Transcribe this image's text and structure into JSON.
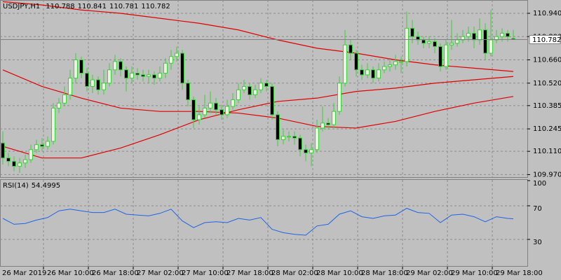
{
  "chart_data": [
    {
      "type": "candlestick",
      "title": "USDJPY,H1",
      "categories": [
        "26 Mar 2019",
        null,
        null,
        null,
        null,
        null,
        null,
        null,
        "26 Mar 10:00",
        null,
        null,
        null,
        null,
        null,
        null,
        null,
        "26 Mar 18:00",
        null,
        null,
        null,
        null,
        null,
        null,
        null,
        "27 Mar 02:00",
        null,
        null,
        null,
        null,
        null,
        null,
        null,
        "27 Mar 10:00",
        null,
        null,
        null,
        null,
        null,
        null,
        null,
        "27 Mar 18:00",
        null,
        null,
        null,
        null,
        null,
        null,
        null,
        "28 Mar 02:00",
        null,
        null,
        null,
        null,
        null,
        null,
        null,
        "28 Mar 10:00",
        null,
        null,
        null,
        null,
        null,
        null,
        null,
        "28 Mar 18:00",
        null,
        null,
        null,
        null,
        null,
        null,
        null,
        "29 Mar 02:00",
        null,
        null,
        null,
        null,
        null,
        null,
        null,
        "29 Mar 10:00",
        null,
        null,
        null,
        null,
        null,
        null,
        null,
        "29 Mar 18:00",
        null,
        null,
        null
      ],
      "open": [
        110.16,
        110.07,
        110.05,
        110.02,
        110.04,
        110.06,
        110.12,
        110.15,
        110.14,
        110.17,
        110.37,
        110.4,
        110.45,
        110.55,
        110.66,
        110.58,
        110.5,
        110.54,
        110.48,
        110.52,
        110.6,
        110.65,
        110.6,
        110.55,
        110.58,
        110.57,
        110.56,
        110.57,
        110.55,
        110.58,
        110.64,
        110.68,
        110.7,
        110.52,
        110.42,
        110.3,
        110.33,
        110.37,
        110.4,
        110.36,
        110.33,
        110.38,
        110.42,
        110.48,
        110.5,
        110.45,
        110.48,
        110.52,
        110.5,
        110.33,
        110.18,
        110.2,
        110.2,
        110.19,
        110.12,
        110.1,
        110.12,
        110.25,
        110.28,
        110.27,
        110.35,
        110.52,
        110.75,
        110.7,
        110.6,
        110.57,
        110.6,
        110.55,
        110.6,
        110.62,
        110.63,
        110.65,
        110.65,
        110.85,
        110.8,
        110.78,
        110.76,
        110.77,
        110.74,
        110.62,
        110.75,
        110.76,
        110.78,
        110.8,
        110.82,
        110.78,
        110.84,
        110.7,
        110.78,
        110.8,
        110.82,
        110.788
      ],
      "high": [
        110.23,
        110.1,
        110.08,
        110.07,
        110.09,
        110.15,
        110.18,
        110.19,
        110.2,
        110.4,
        110.43,
        110.5,
        110.6,
        110.7,
        110.68,
        110.61,
        110.57,
        110.56,
        110.6,
        110.64,
        110.69,
        110.67,
        110.62,
        110.62,
        110.61,
        110.6,
        110.6,
        110.59,
        110.62,
        110.67,
        110.72,
        110.74,
        110.72,
        110.54,
        110.44,
        110.38,
        110.45,
        110.47,
        110.43,
        110.39,
        110.42,
        110.46,
        110.52,
        110.54,
        110.52,
        110.51,
        110.55,
        110.54,
        110.52,
        110.35,
        110.24,
        110.23,
        110.23,
        110.21,
        110.15,
        110.16,
        110.3,
        110.38,
        110.31,
        110.4,
        110.56,
        110.84,
        110.78,
        110.72,
        110.63,
        110.64,
        110.62,
        110.64,
        110.65,
        110.66,
        110.69,
        110.68,
        110.95,
        110.9,
        110.83,
        110.8,
        110.8,
        110.79,
        110.76,
        110.78,
        110.9,
        110.82,
        110.84,
        110.86,
        110.86,
        110.91,
        110.88,
        110.96,
        110.84,
        110.85,
        110.84,
        110.841
      ],
      "low": [
        110.03,
        110.02,
        109.99,
        109.98,
        110.01,
        110.04,
        110.1,
        110.11,
        110.12,
        110.15,
        110.34,
        110.38,
        110.42,
        110.52,
        110.55,
        110.47,
        110.46,
        110.45,
        110.45,
        110.5,
        110.57,
        110.56,
        110.47,
        110.52,
        110.54,
        110.53,
        110.52,
        110.51,
        110.53,
        110.55,
        110.6,
        110.65,
        110.48,
        110.38,
        110.25,
        110.27,
        110.31,
        110.34,
        110.33,
        110.3,
        110.31,
        110.36,
        110.4,
        110.46,
        110.42,
        110.43,
        110.46,
        110.47,
        110.3,
        110.14,
        110.15,
        110.17,
        110.15,
        110.08,
        110.05,
        110.02,
        110.1,
        110.23,
        110.24,
        110.25,
        110.33,
        110.5,
        110.66,
        110.56,
        110.54,
        110.55,
        110.52,
        110.53,
        110.58,
        110.59,
        110.6,
        110.58,
        110.62,
        110.76,
        110.75,
        110.73,
        110.73,
        110.7,
        110.59,
        110.6,
        110.72,
        110.74,
        110.76,
        110.77,
        110.73,
        110.75,
        110.66,
        110.68,
        110.76,
        110.77,
        110.77,
        110.781
      ],
      "close": [
        110.07,
        110.05,
        110.02,
        110.04,
        110.06,
        110.12,
        110.15,
        110.14,
        110.17,
        110.37,
        110.4,
        110.45,
        110.55,
        110.66,
        110.58,
        110.5,
        110.54,
        110.48,
        110.52,
        110.6,
        110.65,
        110.6,
        110.55,
        110.58,
        110.57,
        110.56,
        110.57,
        110.55,
        110.58,
        110.64,
        110.68,
        110.7,
        110.52,
        110.42,
        110.3,
        110.33,
        110.37,
        110.4,
        110.36,
        110.33,
        110.38,
        110.42,
        110.48,
        110.5,
        110.45,
        110.48,
        110.52,
        110.5,
        110.33,
        110.18,
        110.2,
        110.2,
        110.19,
        110.12,
        110.1,
        110.12,
        110.25,
        110.28,
        110.27,
        110.35,
        110.52,
        110.75,
        110.7,
        110.6,
        110.57,
        110.6,
        110.55,
        110.6,
        110.62,
        110.63,
        110.65,
        110.65,
        110.85,
        110.8,
        110.78,
        110.76,
        110.77,
        110.74,
        110.62,
        110.75,
        110.76,
        110.78,
        110.8,
        110.82,
        110.78,
        110.84,
        110.7,
        110.78,
        110.8,
        110.82,
        110.8,
        110.782
      ],
      "colors": {
        "wick": "#3ad13a",
        "up": "#e6f6dc",
        "down": "#000000",
        "last_price": "#808080"
      },
      "series": [
        {
          "color": "#e00000",
          "x": [
            0,
            7,
            14,
            21,
            28,
            35,
            42,
            49,
            56,
            63,
            70,
            77,
            84,
            91
          ],
          "values": [
            111.01,
            110.99,
            110.96,
            110.94,
            110.91,
            110.88,
            110.84,
            110.78,
            110.73,
            110.7,
            110.66,
            110.63,
            110.61,
            110.59
          ]
        },
        {
          "color": "#e00000",
          "x": [
            0,
            7,
            14,
            21,
            28,
            35,
            42,
            49,
            56,
            63,
            70,
            77,
            84,
            91
          ],
          "values": [
            110.6,
            110.5,
            110.43,
            110.37,
            110.35,
            110.35,
            110.34,
            110.31,
            110.26,
            110.25,
            110.29,
            110.35,
            110.4,
            110.44
          ]
        },
        {
          "color": "#e00000",
          "x": [
            0,
            7,
            14,
            21,
            28,
            35,
            42,
            49,
            56,
            63,
            70,
            77,
            84,
            91
          ],
          "values": [
            110.14,
            110.07,
            110.07,
            110.13,
            110.21,
            110.3,
            110.36,
            110.41,
            110.43,
            110.47,
            110.49,
            110.52,
            110.54,
            110.56
          ]
        }
      ],
      "ylim": [
        109.955,
        111.02
      ],
      "yticks": [
        {
          "value": 110.94,
          "label": "110.940"
        },
        {
          "value": 110.8,
          "label": "110.800"
        },
        {
          "value": 110.66,
          "label": "110.660"
        },
        {
          "value": 110.52,
          "label": "110.520"
        },
        110.385,
        110.245,
        {
          "value": 110.11,
          "label": "110.110"
        },
        {
          "value": 109.97,
          "label": "109.970"
        }
      ],
      "grid": true
    },
    {
      "type": "line",
      "title": "RSI(14)",
      "series": [
        {
          "name": "RSI(14)",
          "color": "#1e64e6",
          "x": [
            0,
            2,
            4,
            6,
            8,
            10,
            12,
            14,
            16,
            18,
            20,
            22,
            24,
            26,
            28,
            30,
            32,
            34,
            36,
            38,
            40,
            42,
            44,
            46,
            48,
            50,
            52,
            54,
            56,
            58,
            60,
            62,
            64,
            66,
            68,
            70,
            72,
            74,
            76,
            78,
            80,
            82,
            84,
            86,
            88,
            90,
            91
          ],
          "values": [
            55,
            48,
            49,
            53,
            56,
            64,
            66,
            64,
            62,
            62,
            66,
            60,
            59,
            58,
            61,
            66,
            52,
            44,
            50,
            51,
            50,
            55,
            53,
            56,
            42,
            38,
            36,
            35,
            46,
            48,
            60,
            64,
            57,
            55,
            58,
            59,
            67,
            62,
            61,
            50,
            59,
            60,
            57,
            51,
            57,
            55,
            54.4995
          ]
        }
      ],
      "ylim": [
        0,
        100
      ],
      "yticks": [
        30,
        70,
        100
      ],
      "grid": true
    }
  ]
}
